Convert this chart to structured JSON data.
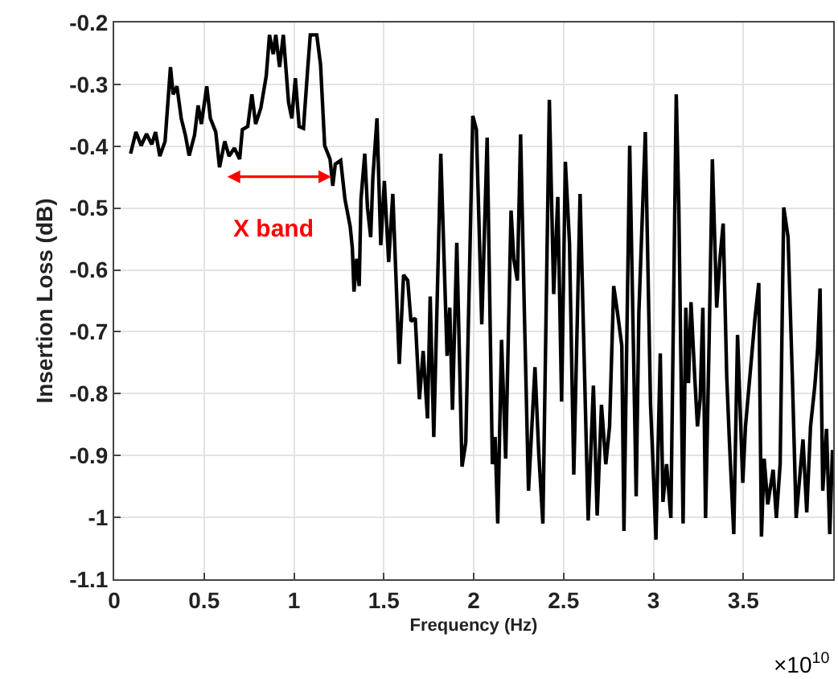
{
  "chart_data": {
    "type": "line",
    "xlabel": "Frequency (Hz)",
    "ylabel": "Insertion Loss (dB)",
    "xlim": [
      0,
      4
    ],
    "ylim": [
      -1.1,
      -0.2
    ],
    "xticks": [
      0,
      0.5,
      1,
      1.5,
      2,
      2.5,
      3,
      3.5
    ],
    "yticks": [
      -1.1,
      -1,
      -0.9,
      -0.8,
      -0.7,
      -0.6,
      -0.5,
      -0.4,
      -0.3,
      -0.2
    ],
    "grid": true,
    "marker": "none",
    "line_style": "solid",
    "x": [
      0.091,
      0.121,
      0.15,
      0.18,
      0.209,
      0.23,
      0.254,
      0.283,
      0.313,
      0.328,
      0.349,
      0.373,
      0.396,
      0.417,
      0.447,
      0.467,
      0.485,
      0.515,
      0.535,
      0.565,
      0.586,
      0.615,
      0.639,
      0.669,
      0.698,
      0.713,
      0.743,
      0.766,
      0.787,
      0.816,
      0.846,
      0.864,
      0.885,
      0.899,
      0.92,
      0.941,
      0.97,
      0.988,
      1.008,
      1.029,
      1.053,
      1.076,
      1.091,
      1.127,
      1.148,
      1.171,
      1.201,
      1.216,
      1.23,
      1.26,
      1.284,
      1.313,
      1.325,
      1.334,
      1.349,
      1.363,
      1.373,
      1.394,
      1.409,
      1.427,
      1.439,
      1.462,
      1.483,
      1.503,
      1.527,
      1.55,
      1.586,
      1.61,
      1.633,
      1.651,
      1.675,
      1.698,
      1.719,
      1.743,
      1.758,
      1.778,
      1.817,
      1.852,
      1.867,
      1.882,
      1.906,
      1.935,
      1.956,
      1.977,
      1.995,
      2.015,
      2.045,
      2.075,
      2.104,
      2.119,
      2.134,
      2.155,
      2.178,
      2.208,
      2.223,
      2.243,
      2.261,
      2.282,
      2.305,
      2.341,
      2.362,
      2.385,
      2.421,
      2.445,
      2.468,
      2.489,
      2.51,
      2.533,
      2.557,
      2.592,
      2.637,
      2.666,
      2.687,
      2.711,
      2.735,
      2.756,
      2.779,
      2.8,
      2.824,
      2.836,
      2.868,
      2.904,
      2.919,
      2.955,
      2.984,
      2.999,
      3.014,
      3.038,
      3.053,
      3.073,
      3.097,
      3.127,
      3.141,
      3.165,
      3.18,
      3.195,
      3.209,
      3.23,
      3.245,
      3.26,
      3.275,
      3.29,
      3.31,
      3.328,
      3.352,
      3.37,
      3.388,
      3.408,
      3.423,
      3.447,
      3.468,
      3.497,
      3.512,
      3.536,
      3.565,
      3.586,
      3.601,
      3.616,
      3.636,
      3.666,
      3.684,
      3.705,
      3.725,
      3.749,
      3.773,
      3.794,
      3.815,
      3.832,
      3.853,
      3.874,
      3.898,
      3.913,
      3.927,
      3.942,
      3.963,
      3.981,
      3.996
    ],
    "series": [
      {
        "color": "#000000",
        "values": [
          -0.412,
          -0.377,
          -0.399,
          -0.38,
          -0.397,
          -0.377,
          -0.416,
          -0.392,
          -0.272,
          -0.316,
          -0.303,
          -0.355,
          -0.382,
          -0.415,
          -0.382,
          -0.334,
          -0.364,
          -0.303,
          -0.355,
          -0.377,
          -0.434,
          -0.392,
          -0.416,
          -0.403,
          -0.421,
          -0.373,
          -0.368,
          -0.316,
          -0.364,
          -0.338,
          -0.286,
          -0.22,
          -0.251,
          -0.22,
          -0.272,
          -0.22,
          -0.329,
          -0.355,
          -0.29,
          -0.368,
          -0.371,
          -0.277,
          -0.22,
          -0.22,
          -0.268,
          -0.399,
          -0.421,
          -0.464,
          -0.429,
          -0.423,
          -0.486,
          -0.53,
          -0.565,
          -0.635,
          -0.582,
          -0.626,
          -0.486,
          -0.412,
          -0.499,
          -0.547,
          -0.451,
          -0.355,
          -0.56,
          -0.456,
          -0.587,
          -0.477,
          -0.752,
          -0.608,
          -0.617,
          -0.683,
          -0.678,
          -0.809,
          -0.731,
          -0.84,
          -0.643,
          -0.87,
          -0.412,
          -0.739,
          -0.661,
          -0.826,
          -0.556,
          -0.918,
          -0.879,
          -0.6,
          -0.351,
          -0.373,
          -0.688,
          -0.386,
          -0.914,
          -0.87,
          -1.01,
          -0.713,
          -0.905,
          -0.504,
          -0.582,
          -0.617,
          -0.381,
          -0.669,
          -0.957,
          -0.757,
          -0.896,
          -1.01,
          -0.325,
          -0.639,
          -0.482,
          -0.813,
          -0.425,
          -0.556,
          -0.931,
          -0.477,
          -1.005,
          -0.787,
          -0.997,
          -0.818,
          -0.914,
          -0.853,
          -0.626,
          -0.669,
          -0.722,
          -1.022,
          -0.399,
          -0.966,
          -0.669,
          -0.377,
          -0.818,
          -0.923,
          -1.036,
          -0.735,
          -0.975,
          -0.914,
          -1.001,
          -0.316,
          -0.495,
          -1.01,
          -0.661,
          -0.783,
          -0.652,
          -0.774,
          -0.853,
          -0.809,
          -0.661,
          -1.001,
          -0.713,
          -0.421,
          -0.661,
          -0.582,
          -0.525,
          -0.774,
          -0.879,
          -1.027,
          -0.705,
          -0.944,
          -0.853,
          -0.774,
          -0.678,
          -0.621,
          -1.031,
          -0.905,
          -0.979,
          -0.923,
          -1.001,
          -0.914,
          -0.499,
          -0.547,
          -0.774,
          -1.001,
          -0.931,
          -0.874,
          -0.992,
          -0.853,
          -0.787,
          -0.731,
          -0.63,
          -0.957,
          -0.857,
          -1.027,
          -0.891
        ]
      }
    ],
    "annotations": [
      "×10$^{10}$",
      "X band"
    ]
  }
}
